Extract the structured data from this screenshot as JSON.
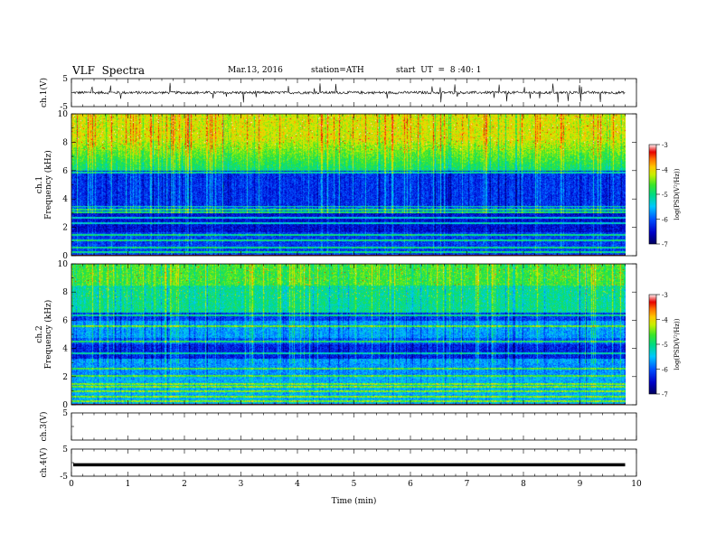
{
  "header": {
    "title": "VLF  Spectra",
    "date": "Mar.13, 2016",
    "station": "station=ATH",
    "start": "start  UT  =  8 :40: 1"
  },
  "chart_data": [
    {
      "type": "line",
      "panel": "ch1-waveform",
      "ylabel": "ch.1(V)",
      "ylim": [
        -5,
        5
      ],
      "yticks": [
        "5",
        "-5"
      ],
      "xlim": [
        0,
        10
      ],
      "baseline": 0,
      "amplitude_typical": 0.8,
      "spike_max": 3.5
    },
    {
      "type": "heatmap",
      "panel": "ch1-spectrogram",
      "ylabel": "ch.1\nFrequency (kHz)",
      "ylim": [
        0,
        10
      ],
      "yticks": [
        "0",
        "2",
        "4",
        "6",
        "8",
        "10"
      ],
      "xlim": [
        0,
        9.8
      ],
      "colorbar": {
        "label": "log(PSD(V²/Hz))",
        "range": [
          -7,
          -3
        ],
        "ticks": [
          "-3",
          "-4",
          "-5",
          "-6",
          "-7"
        ]
      },
      "bands_khz": [
        0.3,
        0.6,
        1.1,
        1.5,
        2.3,
        2.7,
        3.1,
        3.3,
        3.5,
        5.9
      ]
    },
    {
      "type": "heatmap",
      "panel": "ch2-spectrogram",
      "ylabel": "ch.2\nFrequency (kHz)",
      "ylim": [
        0,
        10
      ],
      "yticks": [
        "0",
        "2",
        "4",
        "6",
        "8",
        "10"
      ],
      "xlim": [
        0,
        9.8
      ],
      "colorbar": {
        "label": "log(PSD(V²/Hz))",
        "range": [
          -7,
          -3
        ],
        "ticks": [
          "-3",
          "-4",
          "-5",
          "-6",
          "-7"
        ]
      },
      "bands_khz": [
        0.3,
        0.6,
        1.0,
        1.3,
        1.5,
        2.1,
        2.6,
        3.7,
        4.5,
        5.6,
        6.4
      ]
    },
    {
      "type": "line",
      "panel": "ch3-waveform",
      "ylabel": "ch.3(V)",
      "ylim": [
        -5,
        5
      ],
      "yticks": [
        "5"
      ],
      "xlim": [
        0,
        10
      ],
      "baseline": null
    },
    {
      "type": "line",
      "panel": "ch4-waveform",
      "ylabel": "ch.4(V)",
      "ylim": [
        -5,
        5
      ],
      "yticks": [
        "5",
        "-5"
      ],
      "xlim": [
        0,
        10
      ],
      "baseline": -0.8
    }
  ],
  "xaxis": {
    "label": "Time (min)",
    "ticks": [
      "0",
      "1",
      "2",
      "3",
      "4",
      "5",
      "6",
      "7",
      "8",
      "9",
      "10"
    ],
    "range": [
      0,
      10
    ]
  }
}
